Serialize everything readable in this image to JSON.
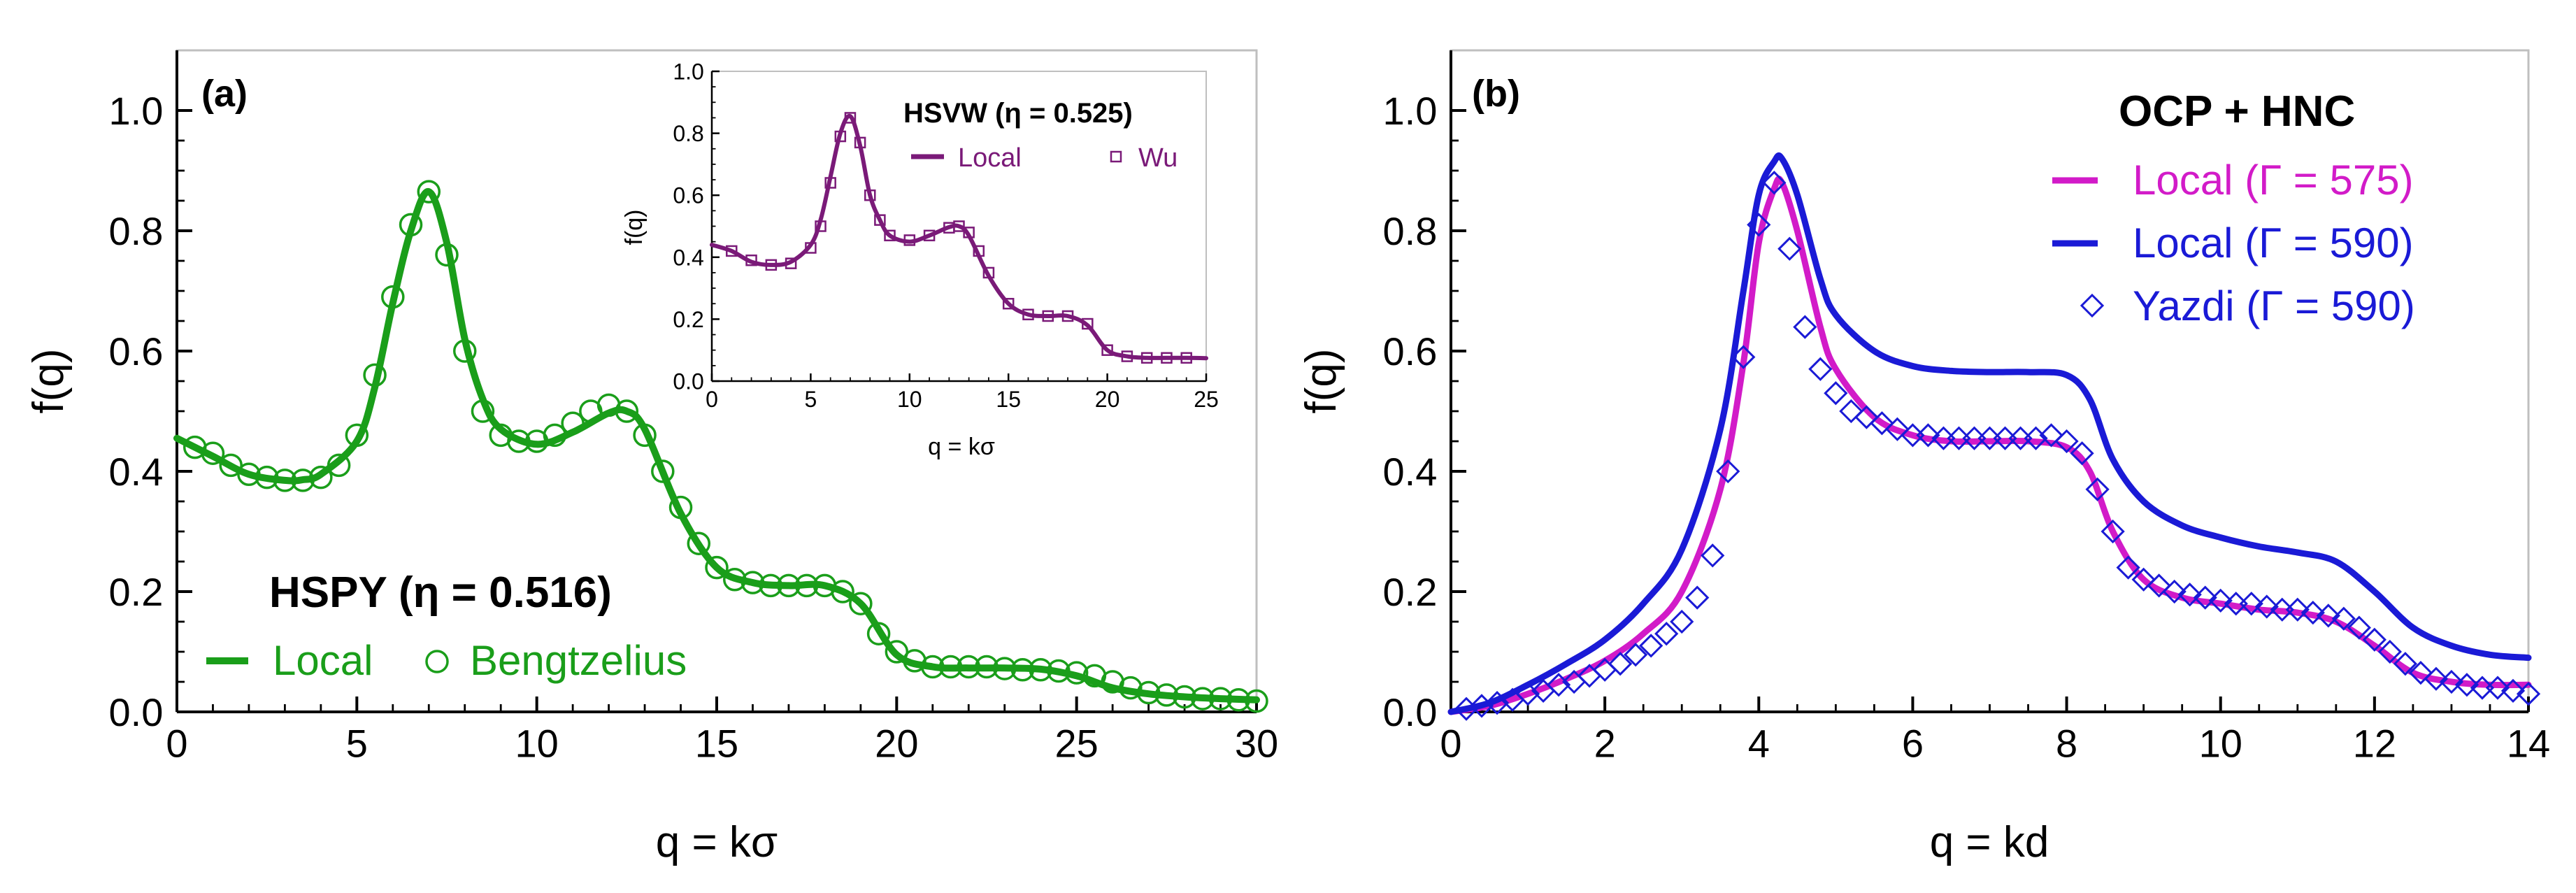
{
  "colors": {
    "green": "#1a9e1a",
    "purple": "#7a1a78",
    "magenta": "#d21bc8",
    "blue": "#1a1ad6",
    "axis": "#000000",
    "frame": "#bfbfbf"
  },
  "chart_data": [
    {
      "panel_label": "(a)",
      "type": "line",
      "xlabel": "q = kσ",
      "ylabel": "f(q)",
      "xlim": [
        0,
        30
      ],
      "ylim": [
        0,
        1.1
      ],
      "xticks": [
        "0",
        "5",
        "10",
        "15",
        "20",
        "25",
        "30"
      ],
      "yticks": [
        "0.0",
        "0.2",
        "0.4",
        "0.6",
        "0.8",
        "1.0"
      ],
      "legend_title": "HSPY (η = 0.516)",
      "legend_position": "bottom-left",
      "series": [
        {
          "name": "Local",
          "style": "line",
          "color": "#1a9e1a",
          "x": [
            0,
            1,
            2,
            3,
            3.5,
            4,
            5,
            5.5,
            6,
            6.5,
            7,
            7.5,
            8,
            8.5,
            9,
            10,
            11,
            12,
            12.5,
            13,
            14,
            15,
            16,
            17,
            18,
            19,
            20,
            21,
            22,
            23,
            24,
            25,
            26,
            27,
            28,
            29,
            30
          ],
          "y": [
            0.455,
            0.425,
            0.395,
            0.385,
            0.386,
            0.395,
            0.45,
            0.54,
            0.68,
            0.8,
            0.865,
            0.78,
            0.62,
            0.52,
            0.47,
            0.445,
            0.465,
            0.497,
            0.5,
            0.47,
            0.33,
            0.24,
            0.215,
            0.21,
            0.21,
            0.18,
            0.095,
            0.075,
            0.073,
            0.073,
            0.071,
            0.06,
            0.04,
            0.03,
            0.025,
            0.022,
            0.02
          ]
        },
        {
          "name": "Bengtzelius",
          "style": "open-circle",
          "color": "#1a9e1a",
          "x": [
            0.5,
            1.0,
            1.5,
            2.0,
            2.5,
            3.0,
            3.5,
            4.0,
            4.5,
            5.0,
            5.5,
            6.0,
            6.5,
            7.0,
            7.5,
            8.0,
            8.5,
            9.0,
            9.5,
            10.0,
            10.5,
            11.0,
            11.5,
            12.0,
            12.5,
            13.0,
            13.5,
            14.0,
            14.5,
            15.0,
            15.5,
            16.0,
            16.5,
            17.0,
            17.5,
            18.0,
            18.5,
            19.0,
            19.5,
            20.0,
            20.5,
            21.0,
            21.5,
            22.0,
            22.5,
            23.0,
            23.5,
            24.0,
            24.5,
            25.0,
            25.5,
            26.0,
            26.5,
            27.0,
            27.5,
            28.0,
            28.5,
            29.0,
            29.5,
            30.0
          ],
          "y": [
            0.44,
            0.43,
            0.41,
            0.395,
            0.39,
            0.385,
            0.385,
            0.39,
            0.41,
            0.46,
            0.56,
            0.69,
            0.81,
            0.865,
            0.76,
            0.6,
            0.5,
            0.46,
            0.45,
            0.45,
            0.46,
            0.48,
            0.5,
            0.51,
            0.5,
            0.46,
            0.4,
            0.34,
            0.28,
            0.24,
            0.22,
            0.215,
            0.21,
            0.21,
            0.21,
            0.21,
            0.2,
            0.18,
            0.13,
            0.1,
            0.085,
            0.075,
            0.075,
            0.075,
            0.075,
            0.072,
            0.07,
            0.07,
            0.068,
            0.065,
            0.06,
            0.05,
            0.04,
            0.032,
            0.028,
            0.025,
            0.022,
            0.022,
            0.02,
            0.018
          ]
        }
      ],
      "inset": {
        "type": "line",
        "title": "HSVW (η = 0.525)",
        "xlabel": "q = kσ",
        "ylabel": "f(q)",
        "xlim": [
          0,
          25
        ],
        "ylim": [
          0,
          1.0
        ],
        "xticks": [
          "0",
          "5",
          "10",
          "15",
          "20",
          "25"
        ],
        "yticks": [
          "0.0",
          "0.2",
          "0.4",
          "0.6",
          "0.8",
          "1.0"
        ],
        "series": [
          {
            "name": "Local",
            "style": "line",
            "color": "#7a1a78",
            "x": [
              0,
              1,
              2,
              3,
              4,
              5,
              5.5,
              6,
              6.5,
              7,
              7.5,
              8,
              8.5,
              9,
              10,
              11,
              12,
              12.5,
              13,
              14,
              15,
              16,
              17,
              18,
              19,
              20,
              21,
              22,
              23,
              24,
              25
            ],
            "y": [
              0.44,
              0.42,
              0.385,
              0.375,
              0.385,
              0.44,
              0.52,
              0.66,
              0.8,
              0.855,
              0.76,
              0.6,
              0.52,
              0.47,
              0.45,
              0.47,
              0.497,
              0.5,
              0.47,
              0.34,
              0.25,
              0.215,
              0.21,
              0.21,
              0.18,
              0.1,
              0.08,
              0.075,
              0.075,
              0.075,
              0.074
            ]
          },
          {
            "name": "Wu",
            "style": "open-square",
            "color": "#7a1a78",
            "x": [
              1,
              2,
              3,
              4,
              5,
              5.5,
              6,
              6.5,
              7,
              7.5,
              8,
              8.5,
              9,
              10,
              11,
              12,
              12.5,
              13,
              13.5,
              14,
              15,
              16,
              17,
              18,
              19,
              20,
              21,
              22,
              23,
              24
            ],
            "y": [
              0.42,
              0.39,
              0.375,
              0.38,
              0.43,
              0.5,
              0.64,
              0.79,
              0.85,
              0.77,
              0.6,
              0.52,
              0.47,
              0.455,
              0.47,
              0.495,
              0.5,
              0.48,
              0.42,
              0.35,
              0.25,
              0.215,
              0.21,
              0.21,
              0.185,
              0.1,
              0.08,
              0.075,
              0.075,
              0.075
            ]
          }
        ]
      }
    },
    {
      "panel_label": "(b)",
      "type": "line",
      "xlabel": "q = kd",
      "ylabel": "f(q)",
      "xlim": [
        0,
        14
      ],
      "ylim": [
        0,
        1.1
      ],
      "xticks": [
        "0",
        "2",
        "4",
        "6",
        "8",
        "10",
        "12",
        "14"
      ],
      "yticks": [
        "0.0",
        "0.2",
        "0.4",
        "0.6",
        "0.8",
        "1.0"
      ],
      "legend_title": "OCP + HNC",
      "legend_position": "top-right",
      "series": [
        {
          "name": "Local (Γ = 575)",
          "style": "line",
          "color": "#d21bc8",
          "x": [
            0,
            0.5,
            1,
            1.5,
            2,
            2.5,
            3,
            3.5,
            3.8,
            4.0,
            4.2,
            4.3,
            4.5,
            4.8,
            5.0,
            5.5,
            6.0,
            6.5,
            7.0,
            7.5,
            8.0,
            8.3,
            8.6,
            9.0,
            9.5,
            10.0,
            10.5,
            11.0,
            11.5,
            12.0,
            12.5,
            13.0,
            13.5,
            14.0
          ],
          "y": [
            0,
            0.01,
            0.03,
            0.055,
            0.085,
            0.13,
            0.2,
            0.37,
            0.58,
            0.78,
            0.87,
            0.88,
            0.8,
            0.64,
            0.57,
            0.49,
            0.46,
            0.45,
            0.45,
            0.45,
            0.44,
            0.4,
            0.3,
            0.22,
            0.19,
            0.18,
            0.17,
            0.165,
            0.15,
            0.11,
            0.065,
            0.05,
            0.045,
            0.045
          ]
        },
        {
          "name": "Local (Γ = 590)",
          "style": "line",
          "color": "#1a1ad6",
          "x": [
            0,
            0.5,
            1,
            1.5,
            2,
            2.5,
            3,
            3.5,
            3.8,
            4.0,
            4.2,
            4.3,
            4.5,
            4.8,
            5.0,
            5.5,
            6.0,
            6.5,
            7.0,
            7.5,
            8.0,
            8.3,
            8.6,
            9.0,
            9.5,
            10.0,
            10.5,
            11.0,
            11.5,
            12.0,
            12.5,
            13.0,
            13.5,
            14.0
          ],
          "y": [
            0,
            0.015,
            0.045,
            0.08,
            0.12,
            0.18,
            0.27,
            0.47,
            0.7,
            0.86,
            0.915,
            0.92,
            0.86,
            0.72,
            0.66,
            0.6,
            0.575,
            0.567,
            0.565,
            0.565,
            0.56,
            0.52,
            0.42,
            0.35,
            0.31,
            0.29,
            0.275,
            0.265,
            0.25,
            0.2,
            0.14,
            0.11,
            0.095,
            0.09
          ]
        },
        {
          "name": "Yazdi (Γ = 590)",
          "style": "open-diamond",
          "color": "#1a1ad6",
          "x": [
            0.2,
            0.4,
            0.6,
            0.8,
            1.0,
            1.2,
            1.4,
            1.6,
            1.8,
            2.0,
            2.2,
            2.4,
            2.6,
            2.8,
            3.0,
            3.2,
            3.4,
            3.6,
            3.8,
            4.0,
            4.2,
            4.4,
            4.6,
            4.8,
            5.0,
            5.2,
            5.4,
            5.6,
            5.8,
            6.0,
            6.2,
            6.4,
            6.6,
            6.8,
            7.0,
            7.2,
            7.4,
            7.6,
            7.8,
            8.0,
            8.2,
            8.4,
            8.6,
            8.8,
            9.0,
            9.2,
            9.4,
            9.6,
            9.8,
            10.0,
            10.2,
            10.4,
            10.6,
            10.8,
            11.0,
            11.2,
            11.4,
            11.6,
            11.8,
            12.0,
            12.2,
            12.4,
            12.6,
            12.8,
            13.0,
            13.2,
            13.4,
            13.6,
            13.8,
            14.0
          ],
          "y": [
            0.005,
            0.01,
            0.015,
            0.02,
            0.03,
            0.035,
            0.045,
            0.05,
            0.06,
            0.07,
            0.08,
            0.095,
            0.11,
            0.13,
            0.15,
            0.19,
            0.26,
            0.4,
            0.59,
            0.81,
            0.88,
            0.77,
            0.64,
            0.57,
            0.53,
            0.5,
            0.49,
            0.48,
            0.47,
            0.46,
            0.46,
            0.455,
            0.455,
            0.455,
            0.455,
            0.455,
            0.455,
            0.455,
            0.46,
            0.45,
            0.43,
            0.37,
            0.3,
            0.24,
            0.22,
            0.21,
            0.2,
            0.195,
            0.19,
            0.185,
            0.18,
            0.18,
            0.175,
            0.17,
            0.17,
            0.165,
            0.16,
            0.155,
            0.14,
            0.12,
            0.1,
            0.08,
            0.065,
            0.055,
            0.05,
            0.045,
            0.04,
            0.04,
            0.035,
            0.03
          ]
        }
      ]
    }
  ]
}
